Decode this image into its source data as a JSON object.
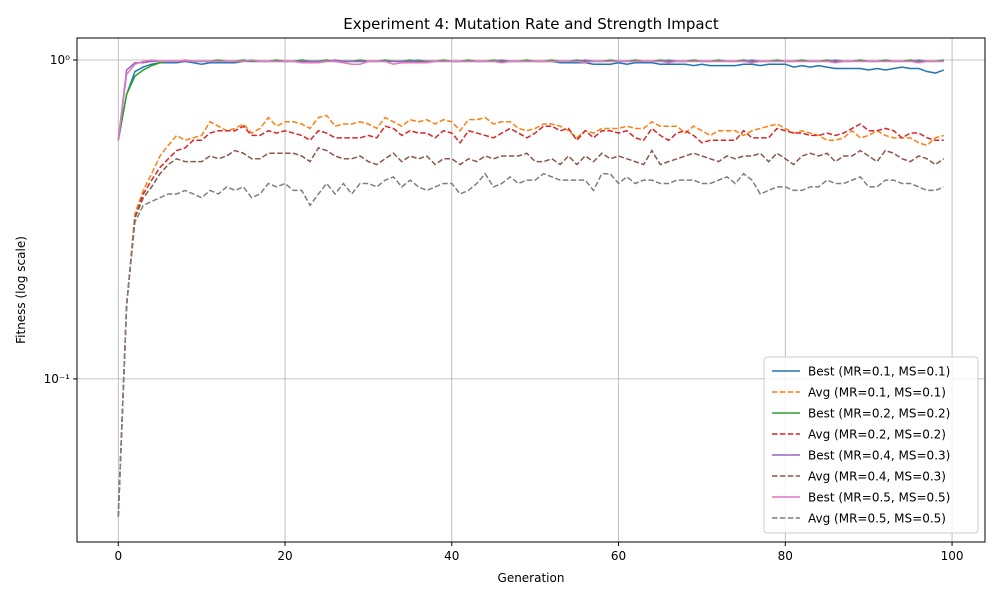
{
  "chart_data": {
    "type": "line",
    "title": "Experiment 4: Mutation Rate and Strength Impact",
    "x_label": "Generation",
    "y_label": "Fitness (log scale)",
    "log_y": true,
    "grid": true,
    "legend_position": "lower right",
    "xlim": [
      -4.95,
      103.95
    ],
    "ylim": [
      0.0308,
      1.172
    ],
    "xticks": [
      0,
      20,
      40,
      60,
      80,
      100
    ],
    "yticks": [
      {
        "value": 0.1,
        "label": "10⁻¹"
      },
      {
        "value": 1,
        "label": "10⁰"
      }
    ],
    "x": [
      0,
      1,
      2,
      3,
      4,
      5,
      6,
      7,
      8,
      9,
      10,
      11,
      12,
      13,
      14,
      15,
      16,
      17,
      18,
      19,
      20,
      21,
      22,
      23,
      24,
      25,
      26,
      27,
      28,
      29,
      30,
      31,
      32,
      33,
      34,
      35,
      36,
      37,
      38,
      39,
      40,
      41,
      42,
      43,
      44,
      45,
      46,
      47,
      48,
      49,
      50,
      51,
      52,
      53,
      54,
      55,
      56,
      57,
      58,
      59,
      60,
      61,
      62,
      63,
      64,
      65,
      66,
      67,
      68,
      69,
      70,
      71,
      72,
      73,
      74,
      75,
      76,
      77,
      78,
      79,
      80,
      81,
      82,
      83,
      84,
      85,
      86,
      87,
      88,
      89,
      90,
      91,
      92,
      93,
      94,
      95,
      96,
      97,
      98,
      99
    ],
    "series": [
      {
        "name": "Best (MR=0.1, MS=0.1)",
        "color": "#1f77b4",
        "linestyle": "solid",
        "values": [
          0.56,
          0.78,
          0.92,
          0.95,
          0.97,
          0.98,
          0.98,
          0.98,
          0.99,
          0.98,
          0.97,
          0.98,
          0.98,
          0.98,
          0.98,
          0.99,
          0.99,
          0.99,
          0.99,
          0.99,
          0.99,
          0.99,
          0.99,
          0.99,
          0.99,
          0.99,
          0.99,
          0.99,
          0.99,
          0.99,
          0.99,
          0.99,
          0.99,
          0.99,
          0.99,
          0.99,
          0.99,
          0.99,
          0.99,
          0.99,
          0.99,
          0.99,
          0.99,
          0.99,
          0.99,
          0.99,
          0.99,
          0.99,
          0.99,
          0.99,
          0.99,
          0.99,
          0.99,
          0.98,
          0.98,
          0.98,
          0.98,
          0.97,
          0.97,
          0.97,
          0.98,
          0.97,
          0.98,
          0.98,
          0.98,
          0.97,
          0.97,
          0.97,
          0.97,
          0.96,
          0.97,
          0.96,
          0.96,
          0.96,
          0.96,
          0.97,
          0.97,
          0.96,
          0.97,
          0.97,
          0.97,
          0.95,
          0.96,
          0.95,
          0.96,
          0.95,
          0.94,
          0.94,
          0.94,
          0.94,
          0.93,
          0.94,
          0.93,
          0.94,
          0.95,
          0.94,
          0.94,
          0.92,
          0.91,
          0.93
        ]
      },
      {
        "name": "Avg (MR=0.1, MS=0.1)",
        "color": "#ff7f0e",
        "linestyle": "dashed",
        "values": [
          0.037,
          0.17,
          0.33,
          0.39,
          0.44,
          0.5,
          0.54,
          0.58,
          0.56,
          0.57,
          0.58,
          0.64,
          0.62,
          0.6,
          0.61,
          0.63,
          0.59,
          0.61,
          0.66,
          0.62,
          0.64,
          0.64,
          0.63,
          0.61,
          0.66,
          0.67,
          0.62,
          0.63,
          0.63,
          0.64,
          0.63,
          0.61,
          0.66,
          0.64,
          0.62,
          0.65,
          0.64,
          0.65,
          0.63,
          0.65,
          0.64,
          0.6,
          0.65,
          0.65,
          0.66,
          0.63,
          0.64,
          0.64,
          0.61,
          0.6,
          0.61,
          0.63,
          0.63,
          0.62,
          0.6,
          0.57,
          0.6,
          0.59,
          0.61,
          0.61,
          0.61,
          0.62,
          0.61,
          0.61,
          0.64,
          0.62,
          0.62,
          0.62,
          0.59,
          0.62,
          0.6,
          0.58,
          0.6,
          0.6,
          0.6,
          0.58,
          0.6,
          0.61,
          0.62,
          0.63,
          0.61,
          0.59,
          0.6,
          0.59,
          0.58,
          0.56,
          0.56,
          0.57,
          0.6,
          0.57,
          0.58,
          0.6,
          0.58,
          0.57,
          0.57,
          0.57,
          0.55,
          0.54,
          0.57,
          0.58
        ]
      },
      {
        "name": "Best (MR=0.2, MS=0.2)",
        "color": "#2ca02c",
        "linestyle": "solid",
        "values": [
          0.56,
          0.78,
          0.89,
          0.93,
          0.96,
          0.98,
          0.99,
          0.99,
          0.99,
          0.99,
          0.99,
          0.99,
          1.0,
          0.99,
          0.99,
          1.0,
          0.99,
          0.99,
          0.99,
          1.0,
          0.99,
          0.99,
          1.0,
          0.99,
          0.99,
          1.0,
          0.99,
          0.99,
          0.99,
          1.0,
          0.99,
          0.99,
          1.0,
          0.99,
          0.99,
          1.0,
          0.99,
          0.99,
          0.99,
          1.0,
          0.99,
          0.99,
          1.0,
          0.99,
          0.99,
          1.0,
          0.99,
          0.99,
          0.99,
          1.0,
          0.99,
          0.99,
          1.0,
          0.99,
          0.99,
          1.0,
          0.99,
          0.99,
          0.99,
          1.0,
          0.99,
          0.99,
          1.0,
          0.99,
          0.99,
          1.0,
          0.99,
          0.99,
          0.99,
          1.0,
          0.99,
          0.99,
          1.0,
          0.99,
          0.99,
          1.0,
          0.99,
          0.99,
          0.99,
          1.0,
          0.99,
          0.99,
          1.0,
          0.99,
          0.99,
          1.0,
          0.99,
          0.99,
          0.99,
          1.0,
          0.99,
          0.99,
          1.0,
          0.99,
          0.99,
          1.0,
          0.99,
          0.99,
          0.99,
          1.0
        ]
      },
      {
        "name": "Avg (MR=0.2, MS=0.2)",
        "color": "#d62728",
        "linestyle": "dashed",
        "values": [
          0.037,
          0.17,
          0.32,
          0.38,
          0.42,
          0.46,
          0.49,
          0.52,
          0.53,
          0.56,
          0.56,
          0.59,
          0.6,
          0.6,
          0.6,
          0.62,
          0.58,
          0.58,
          0.6,
          0.59,
          0.6,
          0.59,
          0.58,
          0.56,
          0.6,
          0.59,
          0.57,
          0.57,
          0.57,
          0.57,
          0.58,
          0.57,
          0.62,
          0.61,
          0.58,
          0.6,
          0.59,
          0.59,
          0.57,
          0.6,
          0.59,
          0.55,
          0.6,
          0.59,
          0.58,
          0.57,
          0.59,
          0.61,
          0.59,
          0.57,
          0.59,
          0.62,
          0.62,
          0.6,
          0.61,
          0.56,
          0.6,
          0.57,
          0.6,
          0.6,
          0.59,
          0.6,
          0.57,
          0.56,
          0.61,
          0.58,
          0.56,
          0.59,
          0.6,
          0.58,
          0.55,
          0.56,
          0.56,
          0.56,
          0.56,
          0.6,
          0.57,
          0.57,
          0.57,
          0.61,
          0.6,
          0.59,
          0.59,
          0.58,
          0.58,
          0.59,
          0.58,
          0.59,
          0.61,
          0.63,
          0.6,
          0.6,
          0.61,
          0.6,
          0.57,
          0.59,
          0.59,
          0.57,
          0.56,
          0.56
        ]
      },
      {
        "name": "Best (MR=0.4, MS=0.3)",
        "color": "#9467bd",
        "linestyle": "solid",
        "values": [
          0.56,
          0.93,
          0.98,
          0.98,
          0.99,
          0.99,
          0.99,
          0.99,
          0.99,
          0.99,
          0.99,
          0.99,
          0.99,
          0.99,
          0.99,
          0.99,
          1.0,
          0.99,
          0.99,
          0.99,
          0.99,
          0.99,
          0.99,
          0.99,
          0.99,
          0.99,
          1.0,
          0.99,
          0.99,
          0.99,
          0.99,
          0.99,
          0.99,
          0.99,
          0.99,
          0.99,
          1.0,
          0.99,
          0.99,
          0.99,
          0.99,
          0.99,
          0.99,
          0.99,
          0.99,
          0.99,
          1.0,
          0.99,
          0.99,
          0.99,
          0.99,
          0.99,
          0.99,
          0.99,
          0.99,
          0.99,
          1.0,
          0.99,
          0.99,
          0.99,
          0.99,
          0.99,
          0.99,
          0.99,
          0.99,
          0.99,
          1.0,
          0.99,
          0.99,
          0.99,
          0.99,
          0.99,
          0.99,
          0.99,
          0.99,
          0.99,
          1.0,
          0.99,
          0.99,
          0.99,
          0.99,
          0.99,
          0.99,
          0.99,
          0.99,
          0.99,
          1.0,
          0.99,
          0.99,
          0.99,
          0.99,
          0.99,
          0.99,
          0.99,
          0.99,
          0.99,
          1.0,
          0.99,
          0.99,
          0.99
        ]
      },
      {
        "name": "Avg (MR=0.4, MS=0.3)",
        "color": "#8c564b",
        "linestyle": "dashed",
        "values": [
          0.037,
          0.17,
          0.32,
          0.37,
          0.4,
          0.44,
          0.47,
          0.49,
          0.48,
          0.48,
          0.48,
          0.5,
          0.49,
          0.5,
          0.52,
          0.51,
          0.49,
          0.49,
          0.51,
          0.51,
          0.51,
          0.51,
          0.5,
          0.48,
          0.53,
          0.52,
          0.5,
          0.49,
          0.49,
          0.5,
          0.48,
          0.47,
          0.49,
          0.51,
          0.48,
          0.5,
          0.49,
          0.5,
          0.47,
          0.49,
          0.49,
          0.47,
          0.49,
          0.48,
          0.5,
          0.49,
          0.5,
          0.5,
          0.5,
          0.51,
          0.48,
          0.48,
          0.49,
          0.47,
          0.5,
          0.47,
          0.5,
          0.48,
          0.51,
          0.49,
          0.5,
          0.49,
          0.48,
          0.47,
          0.52,
          0.47,
          0.48,
          0.49,
          0.5,
          0.51,
          0.5,
          0.49,
          0.48,
          0.5,
          0.49,
          0.5,
          0.5,
          0.51,
          0.48,
          0.51,
          0.49,
          0.47,
          0.5,
          0.51,
          0.5,
          0.51,
          0.48,
          0.5,
          0.5,
          0.52,
          0.5,
          0.48,
          0.52,
          0.51,
          0.49,
          0.48,
          0.5,
          0.49,
          0.47,
          0.49
        ]
      },
      {
        "name": "Best (MR=0.5, MS=0.5)",
        "color": "#e377c2",
        "linestyle": "solid",
        "values": [
          0.56,
          0.9,
          0.97,
          0.99,
          1.0,
          0.99,
          0.99,
          0.99,
          1.0,
          0.99,
          0.99,
          0.99,
          0.99,
          0.99,
          0.99,
          0.99,
          1.0,
          0.99,
          0.99,
          0.99,
          0.99,
          0.99,
          0.98,
          0.98,
          0.98,
          0.99,
          0.99,
          0.98,
          0.97,
          0.97,
          0.99,
          0.99,
          0.99,
          0.97,
          0.98,
          0.98,
          0.98,
          0.98,
          0.99,
          0.99,
          0.99,
          0.99,
          0.99,
          0.99,
          0.99,
          0.99,
          0.98,
          0.99,
          0.99,
          0.99,
          0.99,
          0.99,
          0.99,
          0.99,
          0.99,
          0.99,
          0.98,
          0.99,
          0.99,
          0.99,
          0.99,
          0.99,
          0.99,
          0.99,
          0.99,
          0.99,
          0.98,
          0.99,
          0.99,
          0.99,
          0.99,
          0.99,
          0.99,
          0.99,
          0.99,
          0.99,
          0.98,
          0.99,
          0.99,
          0.99,
          0.99,
          0.99,
          0.99,
          0.99,
          0.99,
          0.99,
          0.98,
          0.99,
          0.99,
          0.99,
          0.99,
          0.99,
          0.99,
          0.99,
          0.99,
          0.99,
          0.98,
          0.99,
          0.99,
          0.99
        ]
      },
      {
        "name": "Avg (MR=0.5, MS=0.5)",
        "color": "#7f7f7f",
        "linestyle": "dashed",
        "values": [
          0.037,
          0.17,
          0.31,
          0.35,
          0.36,
          0.37,
          0.38,
          0.38,
          0.39,
          0.38,
          0.37,
          0.39,
          0.38,
          0.4,
          0.39,
          0.4,
          0.37,
          0.38,
          0.41,
          0.4,
          0.41,
          0.39,
          0.39,
          0.35,
          0.38,
          0.41,
          0.38,
          0.41,
          0.38,
          0.41,
          0.41,
          0.4,
          0.42,
          0.43,
          0.4,
          0.42,
          0.4,
          0.39,
          0.4,
          0.41,
          0.41,
          0.38,
          0.39,
          0.41,
          0.44,
          0.4,
          0.41,
          0.43,
          0.41,
          0.42,
          0.42,
          0.44,
          0.43,
          0.42,
          0.42,
          0.42,
          0.42,
          0.39,
          0.44,
          0.44,
          0.41,
          0.43,
          0.41,
          0.42,
          0.42,
          0.41,
          0.41,
          0.42,
          0.42,
          0.42,
          0.41,
          0.41,
          0.42,
          0.43,
          0.41,
          0.44,
          0.42,
          0.38,
          0.39,
          0.4,
          0.4,
          0.39,
          0.39,
          0.4,
          0.4,
          0.42,
          0.41,
          0.41,
          0.42,
          0.43,
          0.4,
          0.4,
          0.42,
          0.42,
          0.41,
          0.41,
          0.4,
          0.39,
          0.39,
          0.4
        ]
      }
    ]
  }
}
